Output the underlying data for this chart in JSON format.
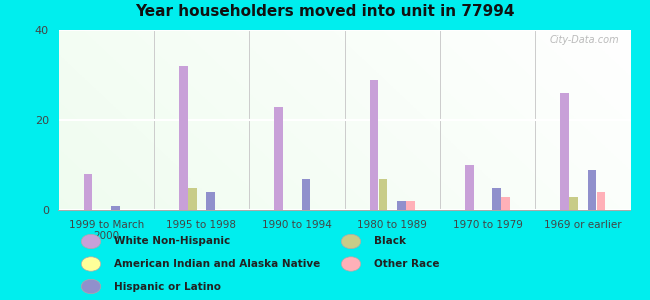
{
  "title": "Year householders moved into unit in 77994",
  "categories": [
    "1999 to March\n2000",
    "1995 to 1998",
    "1990 to 1994",
    "1980 to 1989",
    "1970 to 1979",
    "1969 or earlier"
  ],
  "series_order": [
    "White Non-Hispanic",
    "Black",
    "American Indian and Alaska Native",
    "Hispanic or Latino",
    "Other Race"
  ],
  "series": {
    "White Non-Hispanic": [
      8,
      32,
      23,
      29,
      10,
      26
    ],
    "Black": [
      0,
      5,
      0,
      7,
      0,
      3
    ],
    "American Indian and Alaska Native": [
      0,
      0,
      0,
      0,
      0,
      0
    ],
    "Hispanic or Latino": [
      1,
      4,
      7,
      2,
      5,
      9
    ],
    "Other Race": [
      0,
      0,
      0,
      2,
      3,
      4
    ]
  },
  "colors": {
    "White Non-Hispanic": "#c8a0d8",
    "Black": "#c8cc88",
    "American Indian and Alaska Native": "#ffff99",
    "Hispanic or Latino": "#9090cc",
    "Other Race": "#ffb0b8"
  },
  "ylim": [
    0,
    40
  ],
  "yticks": [
    0,
    20,
    40
  ],
  "bar_width": 0.09,
  "outer_bg": "#00eeee",
  "watermark": "City-Data.com",
  "legend_col1": [
    [
      "White Non-Hispanic",
      "#c8a0d8"
    ],
    [
      "American Indian and Alaska Native",
      "#ffff99"
    ],
    [
      "Hispanic or Latino",
      "#9090cc"
    ]
  ],
  "legend_col2": [
    [
      "Black",
      "#c8cc88"
    ],
    [
      "Other Race",
      "#ffb0b8"
    ]
  ]
}
